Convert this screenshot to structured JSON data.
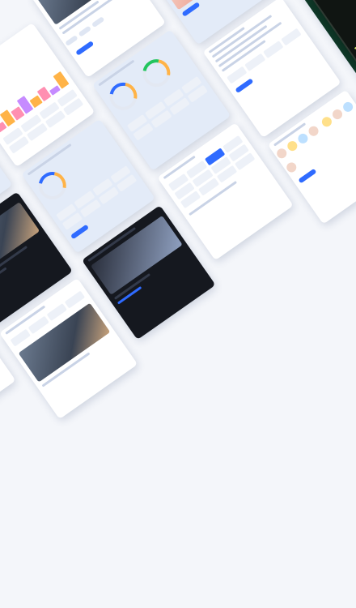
{
  "collage": {
    "description_tiles": 18,
    "theme_colors": {
      "background": "#f4f6fa",
      "accent": "#2f6bff",
      "dark": "#15181f",
      "green": "#0f3a29",
      "highlight": "#d8e86a"
    }
  }
}
